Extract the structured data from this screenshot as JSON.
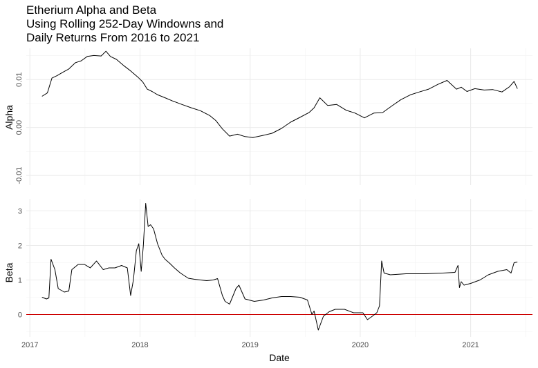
{
  "chart_data": {
    "type": "line",
    "title": [
      "Etherium Alpha and Beta",
      "Using Rolling 252-Day Windowns and",
      "Daily Returns From 2016 to 2021"
    ],
    "xlabel": "Date",
    "x_ticks": [
      "2017",
      "2018",
      "2019",
      "2020",
      "2021"
    ],
    "x_range": [
      "2016-12-20",
      "2021-07-25"
    ],
    "grid": true,
    "reference_line": {
      "panel": "Beta",
      "y": 0,
      "color": "#cc0000"
    },
    "panels": [
      {
        "ylabel": "Alpha",
        "y_ticks": [
          "-0.01",
          "0.00",
          "0.01"
        ],
        "y_tick_values": [
          -0.01,
          0.0,
          0.01
        ],
        "ylim": [
          -0.012,
          0.0165
        ],
        "series": [
          {
            "color": "#000000",
            "x": [
              "2017-02-10",
              "2017-02-28",
              "2017-03-15",
              "2017-04-01",
              "2017-04-20",
              "2017-05-10",
              "2017-06-01",
              "2017-06-20",
              "2017-07-10",
              "2017-08-01",
              "2017-08-25",
              "2017-09-10",
              "2017-09-25",
              "2017-10-15",
              "2017-11-10",
              "2017-12-01",
              "2017-12-25",
              "2018-01-10",
              "2018-01-25",
              "2018-02-10",
              "2018-03-01",
              "2018-03-25",
              "2018-04-20",
              "2018-05-20",
              "2018-06-20",
              "2018-07-20",
              "2018-08-20",
              "2018-09-10",
              "2018-10-01",
              "2018-10-25",
              "2018-11-20",
              "2018-12-15",
              "2019-01-10",
              "2019-02-10",
              "2019-03-15",
              "2019-04-15",
              "2019-05-15",
              "2019-06-15",
              "2019-07-15",
              "2019-08-01",
              "2019-08-20",
              "2019-09-15",
              "2019-10-15",
              "2019-11-15",
              "2019-12-15",
              "2020-01-15",
              "2020-02-15",
              "2020-03-15",
              "2020-04-15",
              "2020-05-15",
              "2020-06-15",
              "2020-07-15",
              "2020-08-15",
              "2020-09-15",
              "2020-10-15",
              "2020-11-15",
              "2020-12-01",
              "2020-12-20",
              "2021-01-15",
              "2021-02-15",
              "2021-03-15",
              "2021-04-15",
              "2021-05-10",
              "2021-05-25",
              "2021-06-05"
            ],
            "y": [
              0.0065,
              0.0072,
              0.0103,
              0.0108,
              0.0115,
              0.0122,
              0.0135,
              0.0139,
              0.0148,
              0.015,
              0.0149,
              0.0159,
              0.0148,
              0.0142,
              0.0128,
              0.0118,
              0.0105,
              0.0095,
              0.008,
              0.0075,
              0.0068,
              0.0062,
              0.0055,
              0.0048,
              0.0041,
              0.0035,
              0.0025,
              0.0014,
              -0.0003,
              -0.0018,
              -0.0014,
              -0.0019,
              -0.0021,
              -0.0017,
              -0.0012,
              -0.0002,
              0.0011,
              0.0021,
              0.0031,
              0.0041,
              0.0062,
              0.0046,
              0.0048,
              0.0036,
              0.003,
              0.002,
              0.003,
              0.0031,
              0.0045,
              0.0058,
              0.0068,
              0.0074,
              0.008,
              0.009,
              0.0098,
              0.008,
              0.0084,
              0.0075,
              0.0081,
              0.0078,
              0.0079,
              0.0074,
              0.0085,
              0.0096,
              0.0081
            ]
          }
        ]
      },
      {
        "ylabel": "Beta",
        "y_ticks": [
          "0",
          "1",
          "2",
          "3"
        ],
        "y_tick_values": [
          0,
          1,
          2,
          3
        ],
        "ylim": [
          -0.65,
          3.35
        ],
        "series": [
          {
            "color": "#000000",
            "x": [
              "2017-02-10",
              "2017-02-25",
              "2017-03-05",
              "2017-03-12",
              "2017-03-25",
              "2017-04-05",
              "2017-04-25",
              "2017-05-10",
              "2017-05-20",
              "2017-06-10",
              "2017-07-01",
              "2017-07-20",
              "2017-08-10",
              "2017-09-01",
              "2017-09-20",
              "2017-10-10",
              "2017-11-01",
              "2017-11-20",
              "2017-12-01",
              "2017-12-10",
              "2017-12-20",
              "2017-12-28",
              "2018-01-05",
              "2018-01-12",
              "2018-01-20",
              "2018-01-28",
              "2018-02-05",
              "2018-02-15",
              "2018-02-28",
              "2018-03-15",
              "2018-03-25",
              "2018-04-10",
              "2018-04-25",
              "2018-05-15",
              "2018-06-10",
              "2018-07-01",
              "2018-07-20",
              "2018-08-10",
              "2018-09-01",
              "2018-09-15",
              "2018-10-01",
              "2018-10-10",
              "2018-10-25",
              "2018-11-15",
              "2018-11-25",
              "2018-12-15",
              "2019-01-15",
              "2019-02-15",
              "2019-03-15",
              "2019-04-15",
              "2019-05-15",
              "2019-06-15",
              "2019-07-10",
              "2019-07-25",
              "2019-08-01",
              "2019-08-15",
              "2019-09-01",
              "2019-09-20",
              "2019-10-10",
              "2019-11-10",
              "2019-12-10",
              "2020-01-10",
              "2020-01-25",
              "2020-02-10",
              "2020-02-25",
              "2020-03-05",
              "2020-03-12",
              "2020-03-20",
              "2020-04-10",
              "2020-06-01",
              "2020-08-01",
              "2020-10-01",
              "2020-11-10",
              "2020-11-20",
              "2020-11-25",
              "2020-12-01",
              "2020-12-10",
              "2021-01-01",
              "2021-02-01",
              "2021-03-01",
              "2021-04-01",
              "2021-05-01",
              "2021-05-15",
              "2021-05-25",
              "2021-06-05"
            ],
            "y": [
              0.5,
              0.45,
              0.48,
              1.6,
              1.3,
              0.75,
              0.65,
              0.68,
              1.3,
              1.45,
              1.45,
              1.35,
              1.55,
              1.3,
              1.35,
              1.35,
              1.42,
              1.35,
              0.55,
              1.0,
              1.85,
              2.05,
              1.25,
              2.0,
              3.22,
              2.55,
              2.6,
              2.48,
              2.05,
              1.72,
              1.6,
              1.48,
              1.35,
              1.2,
              1.05,
              1.02,
              1.0,
              0.98,
              1.0,
              1.04,
              0.55,
              0.38,
              0.3,
              0.75,
              0.85,
              0.45,
              0.38,
              0.42,
              0.48,
              0.52,
              0.52,
              0.5,
              0.42,
              0.0,
              0.1,
              -0.45,
              -0.05,
              0.08,
              0.15,
              0.15,
              0.05,
              0.05,
              -0.15,
              -0.05,
              0.05,
              0.25,
              1.55,
              1.2,
              1.15,
              1.18,
              1.18,
              1.2,
              1.22,
              1.42,
              0.78,
              0.95,
              0.85,
              0.9,
              1.0,
              1.15,
              1.25,
              1.3,
              1.2,
              1.5,
              1.52
            ]
          }
        ]
      }
    ]
  }
}
